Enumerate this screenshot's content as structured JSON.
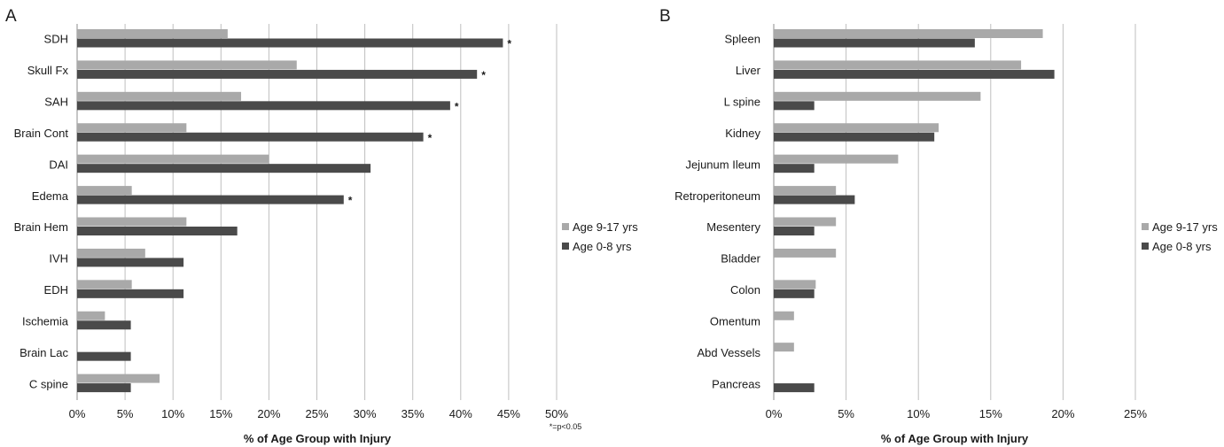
{
  "colors": {
    "young": "#4a4a4a",
    "old": "#a9a9a9",
    "grid": "#bfbfbf",
    "axis": "#8c8c8c"
  },
  "chart_data": [
    {
      "type": "bar",
      "orientation": "horizontal",
      "panel": "A",
      "categories": [
        "SDH",
        "Skull Fx",
        "SAH",
        "Brain Cont",
        "DAI",
        "Edema",
        "Brain Hem",
        "IVH",
        "EDH",
        "Ischemia",
        "Brain Lac",
        "C spine"
      ],
      "series": [
        {
          "name": "Age 9-17 yrs",
          "values": [
            15.7,
            22.9,
            17.1,
            11.4,
            20.0,
            5.7,
            11.4,
            7.1,
            5.7,
            2.9,
            0,
            8.6
          ]
        },
        {
          "name": "Age 0-8 yrs",
          "values": [
            44.4,
            41.7,
            38.9,
            36.1,
            30.6,
            27.8,
            16.7,
            11.1,
            11.1,
            5.6,
            5.6,
            5.6
          ]
        }
      ],
      "significant": [
        true,
        true,
        true,
        true,
        false,
        true,
        false,
        false,
        false,
        false,
        false,
        false
      ],
      "significance_marker": "*",
      "xlabel": "% of Age Group with Injury",
      "xlim": [
        0,
        50
      ],
      "ticks": [
        "0%",
        "5%",
        "10%",
        "15%",
        "20%",
        "25%",
        "30%",
        "35%",
        "40%",
        "45%",
        "50%"
      ],
      "footnote": "*=p<0.05",
      "grid": true,
      "legend": "right"
    },
    {
      "type": "bar",
      "orientation": "horizontal",
      "panel": "B",
      "categories": [
        "Spleen",
        "Liver",
        "L spine",
        "Kidney",
        "Jejunum Ileum",
        "Retroperitoneum",
        "Mesentery",
        "Bladder",
        "Colon",
        "Omentum",
        "Abd Vessels",
        "Pancreas"
      ],
      "series": [
        {
          "name": "Age 9-17 yrs",
          "values": [
            18.6,
            17.1,
            14.3,
            11.4,
            8.6,
            4.3,
            4.3,
            4.3,
            2.9,
            1.4,
            1.4,
            0
          ]
        },
        {
          "name": "Age 0-8 yrs",
          "values": [
            13.9,
            19.4,
            2.8,
            11.1,
            2.8,
            5.6,
            2.8,
            0,
            2.8,
            0,
            0,
            2.8
          ]
        }
      ],
      "xlabel": "% of Age Group with Injury",
      "xlim": [
        0,
        25
      ],
      "ticks": [
        "0%",
        "5%",
        "10%",
        "15%",
        "20%",
        "25%"
      ],
      "grid": true,
      "legend": "right"
    }
  ]
}
